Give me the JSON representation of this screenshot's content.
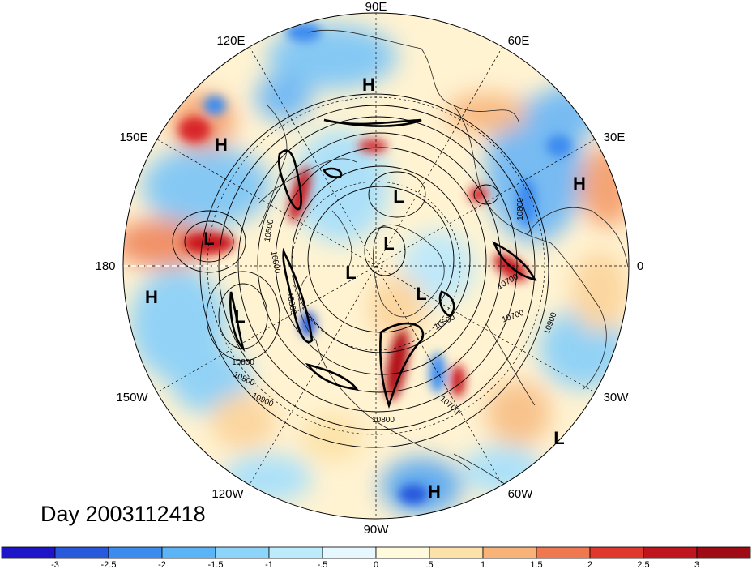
{
  "map": {
    "title": "Day 2003112418",
    "projection": "north polar stereographic",
    "longitude_labels": {
      "top": "90E",
      "upper_left": "120E",
      "upper_right": "60E",
      "left_upper": "150E",
      "right_upper": "30E",
      "left": "180",
      "right": "0",
      "left_lower": "150W",
      "right_lower": "30W",
      "lower_left": "120W",
      "lower_right": "60W",
      "bottom": "90W"
    },
    "pressure_centers": [
      {
        "label": "H",
        "region": "north Siberia"
      },
      {
        "label": "H",
        "region": "east Asia"
      },
      {
        "label": "L",
        "region": "Kara Sea"
      },
      {
        "label": "H",
        "region": "central Asia"
      },
      {
        "label": "L",
        "region": "Bering Sea"
      },
      {
        "label": "L",
        "region": "Arctic Ocean"
      },
      {
        "label": "L",
        "region": "Arctic"
      },
      {
        "label": "L",
        "region": "Greenland"
      },
      {
        "label": "H",
        "region": "central Pacific"
      },
      {
        "label": "L",
        "region": "Gulf of Alaska"
      },
      {
        "label": "L",
        "region": "South Atlantic"
      },
      {
        "label": "H",
        "region": "South America"
      }
    ],
    "contour_labels": [
      "10500",
      "10800",
      "10800",
      "10800",
      "10800",
      "10900",
      "10500",
      "10700",
      "10700",
      "10900",
      "10800",
      "10800",
      "10700"
    ],
    "colors": {
      "land_lines": "#222222",
      "contour_lines": "#000000"
    }
  },
  "colorbar": {
    "tick_labels": [
      "-3",
      "-2.5",
      "-2",
      "-1.5",
      "-1",
      "-.5",
      "0",
      ".5",
      "1",
      "1.5",
      "2",
      "2.5",
      "3"
    ],
    "colors": [
      "#1e14c8",
      "#2858dc",
      "#3c8cf0",
      "#5ab4f5",
      "#8cd4fa",
      "#bcecfc",
      "#e6f8fe",
      "#fffadc",
      "#fce2a8",
      "#f8b478",
      "#f07850",
      "#e0382c",
      "#c0141e",
      "#a00a14"
    ]
  }
}
